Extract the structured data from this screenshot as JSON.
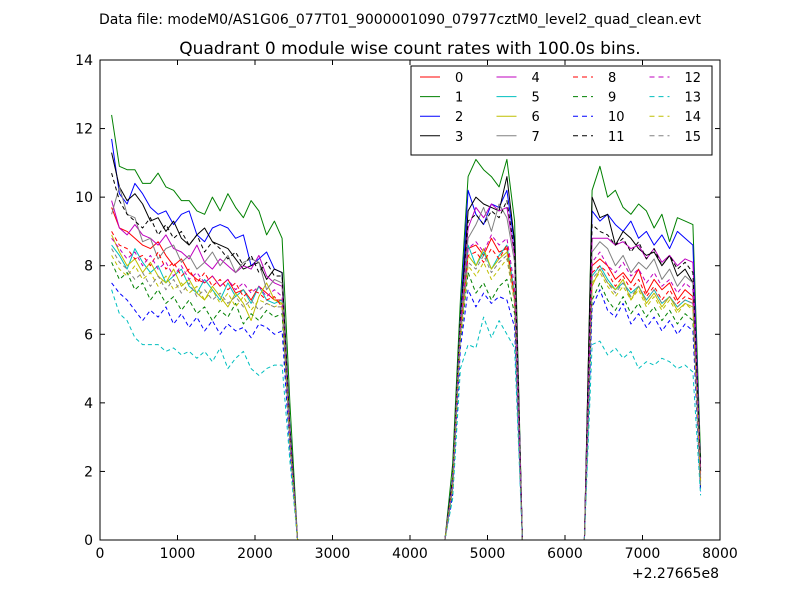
{
  "chart_data": {
    "type": "line",
    "suptitle": "Data file: modeM0/AS1G06_077T01_9000001090_07977cztM0_level2_quad_clean.evt",
    "title": "Quadrant 0 module wise count rates with 100.0s bins.",
    "xlabel": "",
    "ylabel": "",
    "x_offset_label": "+2.27665e8",
    "xlim": [
      0,
      8000
    ],
    "ylim": [
      0,
      14
    ],
    "xticks": [
      0,
      1000,
      2000,
      3000,
      4000,
      5000,
      6000,
      7000,
      8000
    ],
    "xtick_labels": [
      "0",
      "1000",
      "2000",
      "3000",
      "4000",
      "5000",
      "6000",
      "7000",
      "8000"
    ],
    "yticks": [
      0,
      2,
      4,
      6,
      8,
      10,
      12,
      14
    ],
    "ytick_labels": [
      "0",
      "2",
      "4",
      "6",
      "8",
      "10",
      "12",
      "14"
    ],
    "legend_position": "top-right",
    "grid": false,
    "x": [
      150,
      250,
      350,
      450,
      550,
      650,
      750,
      850,
      950,
      1050,
      1150,
      1250,
      1350,
      1450,
      1550,
      1650,
      1750,
      1850,
      1950,
      2050,
      2150,
      2250,
      2350,
      2450,
      2550,
      4450,
      4550,
      4650,
      4750,
      4850,
      4950,
      5050,
      5150,
      5250,
      5350,
      5450,
      6250,
      6350,
      6450,
      6550,
      6650,
      6750,
      6850,
      6950,
      7050,
      7150,
      7250,
      7350,
      7450,
      7550,
      7650,
      7750
    ],
    "series": [
      {
        "name": "0",
        "color": "#ff0000",
        "style": "solid",
        "values": [
          9.7,
          9.1,
          9.0,
          8.8,
          8.6,
          8.5,
          8.7,
          8.3,
          8.0,
          8.2,
          7.8,
          7.6,
          7.5,
          7.7,
          7.4,
          7.6,
          7.2,
          7.3,
          7.0,
          7.4,
          7.2,
          7.0,
          7.0,
          3.0,
          0.0,
          0.0,
          1.5,
          6.0,
          8.5,
          8.6,
          8.3,
          8.8,
          8.4,
          8.5,
          7.0,
          0.0,
          0.0,
          8.0,
          8.2,
          8.0,
          7.6,
          7.8,
          7.5,
          7.9,
          7.2,
          7.6,
          7.3,
          7.5,
          7.0,
          7.3,
          7.1,
          1.8
        ]
      },
      {
        "name": "1",
        "color": "#008000",
        "style": "solid",
        "values": [
          12.4,
          10.9,
          10.8,
          10.8,
          10.4,
          10.4,
          10.7,
          10.3,
          10.2,
          9.9,
          9.9,
          9.6,
          9.5,
          10.0,
          9.6,
          10.1,
          9.7,
          9.4,
          9.9,
          9.6,
          8.9,
          9.3,
          8.8,
          4.0,
          0.0,
          0.0,
          2.2,
          7.0,
          10.6,
          11.1,
          10.8,
          10.6,
          10.3,
          11.1,
          9.3,
          0.0,
          0.0,
          10.2,
          10.9,
          10.0,
          10.2,
          9.7,
          9.5,
          9.8,
          9.6,
          9.1,
          9.5,
          8.7,
          9.4,
          9.3,
          9.2,
          2.4
        ]
      },
      {
        "name": "2",
        "color": "#0000ff",
        "style": "solid",
        "values": [
          11.7,
          10.1,
          9.8,
          10.4,
          10.1,
          9.7,
          9.5,
          9.6,
          9.2,
          9.5,
          9.6,
          8.9,
          8.7,
          9.1,
          9.2,
          9.1,
          8.8,
          8.9,
          8.0,
          8.2,
          8.4,
          7.9,
          7.8,
          3.3,
          0.0,
          0.0,
          1.8,
          6.5,
          10.2,
          9.5,
          9.2,
          9.8,
          9.7,
          10.2,
          8.6,
          0.0,
          0.0,
          9.6,
          9.3,
          9.5,
          9.2,
          9.0,
          9.3,
          8.8,
          9.0,
          8.6,
          8.9,
          8.5,
          9.0,
          8.8,
          8.6,
          2.0
        ]
      },
      {
        "name": "3",
        "color": "#000000",
        "style": "solid",
        "values": [
          11.3,
          10.3,
          9.9,
          10.1,
          9.8,
          9.3,
          9.4,
          9.0,
          9.3,
          8.8,
          8.6,
          8.9,
          9.1,
          8.7,
          8.6,
          8.5,
          8.2,
          7.9,
          8.0,
          8.1,
          7.6,
          7.9,
          7.8,
          3.2,
          0.0,
          0.0,
          1.7,
          6.3,
          9.6,
          10.0,
          9.8,
          9.7,
          9.6,
          10.6,
          8.7,
          0.0,
          0.0,
          10.0,
          9.4,
          9.5,
          8.6,
          9.0,
          8.8,
          8.5,
          8.3,
          8.4,
          8.0,
          8.3,
          7.7,
          7.9,
          7.5,
          2.1
        ]
      },
      {
        "name": "4",
        "color": "#bf00bf",
        "style": "solid",
        "values": [
          9.9,
          9.1,
          8.9,
          9.2,
          8.9,
          8.8,
          8.6,
          8.9,
          8.5,
          8.4,
          8.2,
          8.6,
          8.1,
          7.9,
          8.2,
          8.0,
          7.8,
          8.0,
          7.9,
          8.3,
          7.7,
          7.5,
          7.4,
          3.1,
          0.0,
          0.0,
          1.7,
          6.2,
          9.1,
          9.7,
          9.4,
          9.8,
          9.6,
          9.7,
          8.3,
          0.0,
          0.0,
          8.8,
          8.8,
          8.8,
          8.6,
          8.7,
          8.5,
          8.6,
          8.2,
          8.5,
          8.1,
          8.3,
          8.0,
          8.2,
          8.1,
          2.0
        ]
      },
      {
        "name": "5",
        "color": "#00bfbf",
        "style": "solid",
        "values": [
          8.6,
          8.3,
          7.9,
          8.5,
          8.1,
          7.8,
          8.0,
          7.5,
          7.7,
          7.9,
          7.4,
          7.2,
          7.6,
          7.3,
          7.0,
          7.5,
          7.1,
          7.3,
          6.9,
          7.4,
          7.0,
          6.9,
          7.0,
          2.9,
          0.0,
          0.0,
          1.5,
          6.0,
          8.6,
          8.0,
          8.4,
          7.9,
          8.3,
          8.6,
          7.2,
          0.0,
          0.0,
          7.7,
          8.0,
          7.6,
          7.3,
          7.5,
          7.2,
          7.4,
          7.0,
          7.3,
          6.9,
          7.1,
          6.8,
          7.0,
          6.9,
          1.7
        ]
      },
      {
        "name": "6",
        "color": "#bfbf00",
        "style": "solid",
        "values": [
          8.9,
          8.4,
          8.0,
          8.2,
          7.8,
          8.1,
          7.7,
          7.5,
          7.9,
          7.4,
          7.6,
          7.2,
          7.0,
          7.4,
          7.1,
          6.8,
          7.2,
          6.9,
          6.4,
          7.1,
          7.5,
          7.0,
          6.9,
          2.8,
          0.0,
          0.0,
          1.6,
          6.1,
          8.3,
          8.0,
          8.5,
          7.9,
          8.2,
          8.4,
          7.1,
          0.0,
          0.0,
          7.4,
          7.9,
          7.5,
          7.3,
          7.6,
          7.0,
          7.4,
          6.9,
          7.2,
          6.8,
          7.1,
          6.7,
          6.9,
          6.8,
          1.7
        ]
      },
      {
        "name": "7",
        "color": "#808080",
        "style": "solid",
        "values": [
          9.5,
          10.3,
          9.5,
          9.4,
          8.7,
          8.8,
          8.2,
          8.5,
          8.6,
          8.1,
          8.3,
          7.9,
          8.1,
          8.4,
          8.0,
          8.3,
          7.8,
          8.1,
          8.2,
          8.1,
          7.3,
          7.6,
          7.5,
          3.1,
          0.0,
          0.0,
          1.7,
          6.4,
          8.8,
          9.2,
          9.7,
          9.0,
          9.8,
          9.4,
          8.1,
          0.0,
          0.0,
          8.4,
          8.7,
          8.5,
          8.0,
          8.3,
          7.8,
          8.1,
          7.9,
          8.2,
          7.6,
          7.9,
          7.4,
          7.7,
          7.5,
          1.9
        ]
      },
      {
        "name": "8",
        "color": "#ff0000",
        "style": "dashed",
        "values": [
          9.0,
          8.6,
          8.5,
          8.2,
          8.3,
          8.0,
          8.4,
          7.9,
          8.1,
          7.7,
          7.9,
          7.5,
          7.8,
          7.4,
          7.6,
          7.3,
          7.5,
          7.1,
          7.3,
          7.2,
          7.0,
          7.1,
          6.8,
          2.9,
          0.0,
          0.0,
          1.6,
          6.1,
          8.3,
          8.4,
          8.1,
          8.5,
          8.2,
          8.6,
          7.1,
          0.0,
          0.0,
          7.8,
          8.0,
          7.8,
          7.4,
          7.7,
          7.3,
          7.6,
          7.1,
          7.4,
          7.0,
          7.3,
          6.9,
          7.1,
          7.0,
          1.7
        ]
      },
      {
        "name": "9",
        "color": "#008000",
        "style": "dashed",
        "values": [
          8.1,
          7.6,
          7.8,
          7.3,
          7.5,
          7.0,
          7.3,
          6.9,
          7.1,
          6.7,
          7.0,
          6.6,
          6.8,
          6.4,
          6.7,
          6.5,
          6.9,
          6.3,
          6.6,
          6.4,
          6.7,
          6.5,
          6.6,
          2.7,
          0.0,
          0.0,
          1.4,
          5.8,
          7.8,
          7.2,
          7.5,
          7.0,
          7.4,
          7.6,
          6.6,
          0.0,
          0.0,
          7.0,
          7.5,
          7.0,
          6.7,
          7.1,
          6.6,
          6.9,
          6.5,
          6.8,
          6.4,
          6.7,
          6.3,
          6.6,
          6.4,
          1.5
        ]
      },
      {
        "name": "10",
        "color": "#0000ff",
        "style": "dashed",
        "values": [
          7.5,
          7.2,
          7.0,
          6.7,
          6.4,
          6.7,
          6.5,
          6.8,
          6.3,
          6.6,
          6.2,
          6.5,
          6.1,
          6.4,
          6.0,
          6.3,
          6.1,
          6.2,
          5.9,
          6.3,
          6.2,
          6.0,
          6.1,
          2.6,
          0.0,
          0.0,
          1.3,
          5.6,
          7.3,
          6.8,
          7.2,
          6.9,
          7.1,
          7.0,
          6.2,
          0.0,
          0.0,
          6.8,
          7.3,
          6.7,
          6.5,
          6.9,
          6.3,
          6.6,
          6.2,
          6.5,
          6.1,
          6.4,
          6.0,
          6.3,
          6.1,
          1.4
        ]
      },
      {
        "name": "11",
        "color": "#000000",
        "style": "dashed",
        "values": [
          10.7,
          9.9,
          9.5,
          9.3,
          9.1,
          9.4,
          8.9,
          9.2,
          8.8,
          9.0,
          8.6,
          8.9,
          8.4,
          8.7,
          8.5,
          8.2,
          8.4,
          8.0,
          8.3,
          7.8,
          8.1,
          7.7,
          7.7,
          3.2,
          0.0,
          0.0,
          1.8,
          6.5,
          9.3,
          9.5,
          9.2,
          9.6,
          9.4,
          9.9,
          8.4,
          0.0,
          0.0,
          9.2,
          9.0,
          8.9,
          8.6,
          8.8,
          8.4,
          8.7,
          8.2,
          8.5,
          8.0,
          8.3,
          7.9,
          8.1,
          7.8,
          2.0
        ]
      },
      {
        "name": "12",
        "color": "#bf00bf",
        "style": "dashed",
        "values": [
          8.8,
          8.5,
          8.2,
          8.4,
          8.0,
          8.3,
          7.9,
          8.1,
          7.7,
          8.0,
          7.6,
          7.8,
          7.5,
          7.7,
          7.4,
          7.6,
          7.3,
          7.5,
          7.2,
          7.4,
          7.1,
          7.3,
          7.1,
          3.0,
          0.0,
          0.0,
          1.6,
          6.2,
          8.5,
          8.7,
          8.4,
          8.9,
          8.6,
          8.8,
          7.4,
          0.0,
          0.0,
          8.1,
          8.4,
          8.0,
          7.8,
          8.1,
          7.7,
          7.9,
          7.5,
          7.8,
          7.4,
          7.6,
          7.2,
          7.5,
          7.3,
          1.8
        ]
      },
      {
        "name": "13",
        "color": "#00bfbf",
        "style": "dashed",
        "values": [
          7.3,
          6.6,
          6.4,
          5.9,
          5.7,
          5.7,
          5.7,
          5.5,
          5.6,
          5.4,
          5.5,
          5.3,
          5.5,
          5.2,
          5.6,
          5.0,
          5.3,
          5.5,
          5.0,
          4.8,
          5.0,
          5.1,
          5.1,
          2.3,
          0.0,
          0.0,
          1.2,
          5.0,
          5.7,
          5.6,
          6.5,
          5.9,
          6.4,
          6.0,
          5.6,
          0.0,
          0.0,
          5.7,
          5.8,
          5.4,
          5.6,
          5.3,
          5.5,
          5.0,
          5.2,
          5.1,
          5.3,
          5.2,
          5.0,
          5.1,
          4.9,
          1.3
        ]
      },
      {
        "name": "14",
        "color": "#bfbf00",
        "style": "dashed",
        "values": [
          8.3,
          7.9,
          7.7,
          8.0,
          7.6,
          7.8,
          7.4,
          7.7,
          7.3,
          7.5,
          7.2,
          7.4,
          7.0,
          7.3,
          6.9,
          7.2,
          6.8,
          7.1,
          6.7,
          7.0,
          6.9,
          6.8,
          6.9,
          2.8,
          0.0,
          0.0,
          1.5,
          5.9,
          8.0,
          7.7,
          8.1,
          7.6,
          7.9,
          8.2,
          6.9,
          0.0,
          0.0,
          7.5,
          7.8,
          7.4,
          7.1,
          7.4,
          7.0,
          7.3,
          6.8,
          7.1,
          6.7,
          7.0,
          6.6,
          6.9,
          6.7,
          1.6
        ]
      },
      {
        "name": "15",
        "color": "#808080",
        "style": "dashed",
        "values": [
          8.5,
          8.1,
          7.9,
          7.6,
          7.8,
          7.4,
          7.7,
          7.3,
          7.6,
          7.2,
          7.5,
          7.1,
          7.3,
          7.0,
          7.2,
          6.9,
          7.1,
          6.8,
          7.0,
          6.7,
          6.9,
          6.8,
          6.8,
          2.8,
          0.0,
          0.0,
          1.5,
          6.0,
          8.1,
          7.9,
          8.3,
          7.8,
          8.1,
          8.3,
          7.0,
          0.0,
          0.0,
          7.6,
          7.9,
          7.5,
          7.2,
          7.5,
          7.1,
          7.4,
          7.0,
          7.3,
          6.9,
          7.1,
          6.8,
          7.0,
          6.9,
          1.6
        ]
      }
    ]
  }
}
